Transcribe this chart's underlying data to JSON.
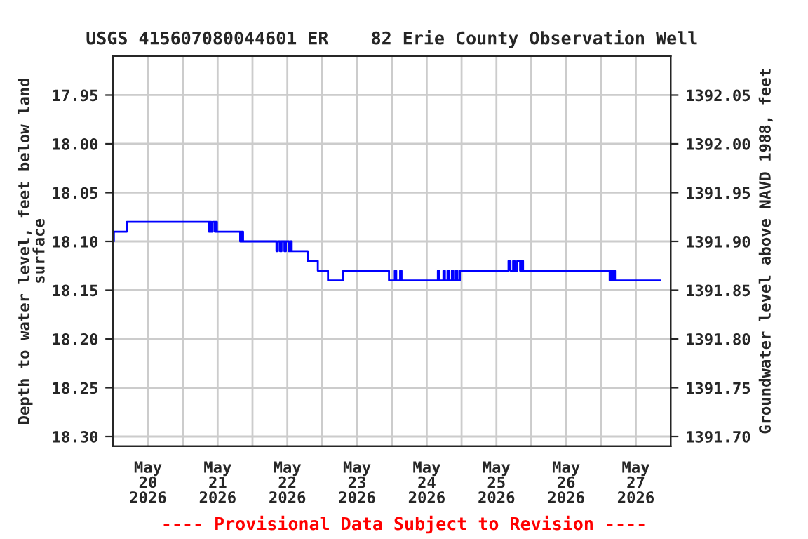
{
  "chart_data": {
    "type": "step",
    "title": "USGS 415607080044601 ER    82 Erie County Observation Well",
    "ylabel": "Depth to water level, feet below land\nsurface",
    "y2label": "Groundwater level above NAVD 1988, feet",
    "annotations": [
      "---- Provisional Data Subject to Revision ----"
    ],
    "grid": true,
    "legend": false,
    "line_style": "solid",
    "marker": "none",
    "xlim": [
      "2026-05-20T00:00",
      "2026-05-28T00:00"
    ],
    "xticks": [
      {
        "value": "2026-05-20T12:00",
        "label": "May\n20\n2026"
      },
      {
        "value": "2026-05-21T12:00",
        "label": "May\n21\n2026"
      },
      {
        "value": "2026-05-22T12:00",
        "label": "May\n22\n2026"
      },
      {
        "value": "2026-05-23T12:00",
        "label": "May\n23\n2026"
      },
      {
        "value": "2026-05-24T12:00",
        "label": "May\n24\n2026"
      },
      {
        "value": "2026-05-25T12:00",
        "label": "May\n25\n2026"
      },
      {
        "value": "2026-05-26T12:00",
        "label": "May\n26\n2026"
      },
      {
        "value": "2026-05-27T12:00",
        "label": "May\n27\n2026"
      },
      {
        "value": "2026-05-21T00:00",
        "label": null
      },
      {
        "value": "2026-05-22T00:00",
        "label": null
      },
      {
        "value": "2026-05-23T00:00",
        "label": null
      },
      {
        "value": "2026-05-24T00:00",
        "label": null
      },
      {
        "value": "2026-05-25T00:00",
        "label": null
      },
      {
        "value": "2026-05-26T00:00",
        "label": null
      },
      {
        "value": "2026-05-27T00:00",
        "label": null
      }
    ],
    "ylim": [
      18.31,
      17.91
    ],
    "yticks": [
      17.95,
      {
        "value": 18.0,
        "label": "18.00"
      },
      18.05,
      {
        "value": 18.1,
        "label": "18.10"
      },
      18.15,
      {
        "value": 18.2,
        "label": "18.20"
      },
      18.25,
      {
        "value": 18.3,
        "label": "18.30"
      }
    ],
    "y2lim": [
      1391.69,
      1392.09
    ],
    "y2ticks": [
      1392.05,
      {
        "value": 1392.0,
        "label": "1392.00"
      },
      1391.95,
      {
        "value": 1391.9,
        "label": "1391.90"
      },
      1391.85,
      {
        "value": 1391.8,
        "label": "1391.80"
      },
      1391.75,
      {
        "value": 1391.7,
        "label": "1391.70"
      }
    ],
    "series": [
      {
        "color": "#0000ff",
        "x": [
          "2026-05-20T00:00",
          "2026-05-20T00:15",
          "2026-05-20T04:45",
          "2026-05-21T09:00",
          "2026-05-21T09:15",
          "2026-05-21T09:45",
          "2026-05-21T10:15",
          "2026-05-21T11:00",
          "2026-05-21T11:15",
          "2026-05-21T11:45",
          "2026-05-21T19:45",
          "2026-05-21T20:15",
          "2026-05-21T20:45",
          "2026-05-22T08:15",
          "2026-05-22T08:45",
          "2026-05-22T09:30",
          "2026-05-22T10:00",
          "2026-05-22T11:00",
          "2026-05-22T11:30",
          "2026-05-22T12:30",
          "2026-05-22T13:00",
          "2026-05-22T13:30",
          "2026-05-22T19:00",
          "2026-05-22T22:30",
          "2026-05-23T02:00",
          "2026-05-23T07:15",
          "2026-05-23T23:00",
          "2026-05-24T01:00",
          "2026-05-24T01:30",
          "2026-05-24T02:50",
          "2026-05-24T03:20",
          "2026-05-24T15:50",
          "2026-05-24T16:20",
          "2026-05-24T17:45",
          "2026-05-24T18:15",
          "2026-05-24T19:10",
          "2026-05-24T19:40",
          "2026-05-24T20:40",
          "2026-05-24T21:10",
          "2026-05-24T22:05",
          "2026-05-24T22:35",
          "2026-05-24T23:25",
          "2026-05-25T16:10",
          "2026-05-25T16:50",
          "2026-05-25T17:45",
          "2026-05-25T18:15",
          "2026-05-25T19:10",
          "2026-05-25T20:10",
          "2026-05-25T20:40",
          "2026-05-25T21:10",
          "2026-05-27T03:00",
          "2026-05-27T03:20",
          "2026-05-27T03:50",
          "2026-05-27T04:20",
          "2026-05-27T04:50",
          "2026-05-27T20:30"
        ],
        "values": [
          18.1,
          18.09,
          18.08,
          18.09,
          18.08,
          18.09,
          18.08,
          18.09,
          18.08,
          18.09,
          18.1,
          18.09,
          18.1,
          18.11,
          18.1,
          18.11,
          18.1,
          18.11,
          18.1,
          18.11,
          18.1,
          18.11,
          18.12,
          18.13,
          18.14,
          18.13,
          18.14,
          18.13,
          18.14,
          18.13,
          18.14,
          18.13,
          18.14,
          18.13,
          18.14,
          18.13,
          18.14,
          18.13,
          18.14,
          18.13,
          18.14,
          18.13,
          18.12,
          18.13,
          18.12,
          18.13,
          18.12,
          18.13,
          18.12,
          18.13,
          18.14,
          18.13,
          18.14,
          18.13,
          18.14,
          18.14
        ]
      }
    ]
  }
}
